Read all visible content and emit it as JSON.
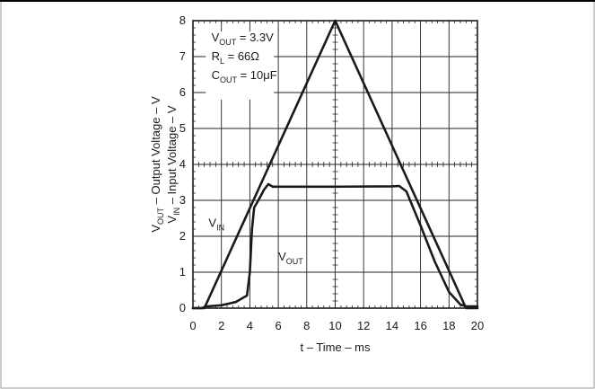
{
  "chart_data": {
    "type": "line",
    "xlabel": "t – Time – ms",
    "ylabel_lines": [
      "V_OUT – Output Voltage – V",
      "V_IN – Input Voltage – V"
    ],
    "ylabel_parts": [
      {
        "main": "V",
        "sub": "OUT",
        "rest": " – Output Voltage – V"
      },
      {
        "main": "V",
        "sub": "IN",
        "rest": " – Input Voltage – V"
      }
    ],
    "xlim": [
      0,
      20
    ],
    "ylim": [
      0,
      8
    ],
    "xticks": [
      0,
      2,
      4,
      6,
      8,
      10,
      12,
      14,
      16,
      18,
      20
    ],
    "yticks": [
      0,
      1,
      2,
      3,
      4,
      5,
      6,
      7,
      8
    ],
    "grid": true,
    "annotations": [
      {
        "main": "V",
        "sub": "OUT",
        "rest": " = 3.3V"
      },
      {
        "main": "R",
        "sub": "L",
        "rest": " = 66Ω"
      },
      {
        "main": "C",
        "sub": "OUT",
        "rest": " = 10μF"
      }
    ],
    "series_labels": [
      {
        "main": "V",
        "sub": "IN",
        "rest": ""
      },
      {
        "main": "V",
        "sub": "OUT",
        "rest": ""
      }
    ],
    "series": [
      {
        "id": "vin",
        "x": [
          0,
          0.8,
          10,
          19.2,
          20
        ],
        "y": [
          0,
          0,
          8,
          0,
          0
        ]
      },
      {
        "id": "vout",
        "x": [
          0,
          0.6,
          1.0,
          2.0,
          3.0,
          3.8,
          4.0,
          4.15,
          4.3,
          4.6,
          5.0,
          5.3,
          5.6,
          6.0,
          10.0,
          14.0,
          14.5,
          15.0,
          16.0,
          17.0,
          18.0,
          18.8,
          19.2,
          19.6,
          20.0
        ],
        "y": [
          0,
          0,
          0.05,
          0.08,
          0.17,
          0.35,
          1.0,
          2.2,
          2.8,
          3.0,
          3.3,
          3.45,
          3.38,
          3.38,
          3.38,
          3.39,
          3.4,
          3.25,
          2.3,
          1.3,
          0.45,
          0.1,
          0.05,
          0.05,
          0.05
        ]
      }
    ]
  }
}
